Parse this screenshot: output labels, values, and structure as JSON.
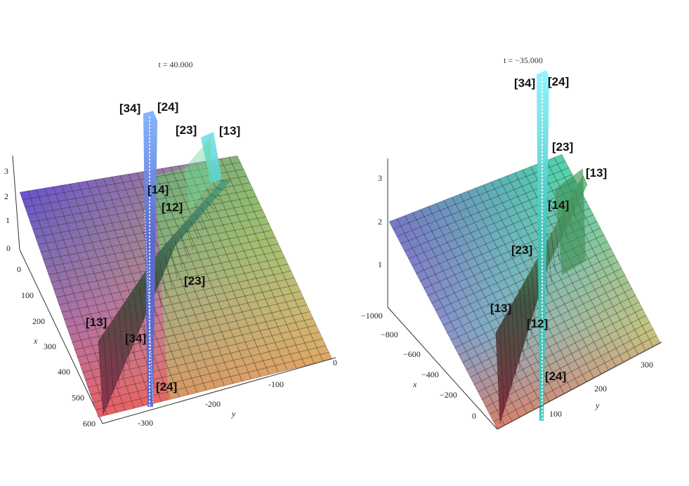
{
  "chart_data": [
    {
      "type": "surface",
      "title": "t = 40.000",
      "x_axis": {
        "label": "x",
        "ticks": [
          "0",
          "100",
          "200",
          "300",
          "400",
          "500",
          "600"
        ]
      },
      "y_axis": {
        "label": "y",
        "ticks": [
          "-300",
          "-200",
          "-100",
          "0"
        ]
      },
      "z_axis": {
        "label": "",
        "ticks": [
          "0",
          "1",
          "2",
          "3"
        ]
      },
      "annotations": [
        "[34]",
        "[24]",
        "[23]",
        "[13]",
        "[14]",
        "[12]",
        "[23]",
        "[13]",
        "[34]",
        "[24]"
      ]
    },
    {
      "type": "surface",
      "title": "t = −35.000",
      "x_axis": {
        "label": "x",
        "ticks": [
          "−1000",
          "−800",
          "−600",
          "−400",
          "−200",
          "0"
        ]
      },
      "y_axis": {
        "label": "y",
        "ticks": [
          "100",
          "200",
          "300"
        ]
      },
      "z_axis": {
        "label": "",
        "ticks": [
          "1",
          "2",
          "3"
        ]
      },
      "annotations": [
        "[34]",
        "[24]",
        "[23]",
        "[13]",
        "[14]",
        "[23]",
        "[13]",
        "[12]",
        "[24]"
      ]
    }
  ]
}
